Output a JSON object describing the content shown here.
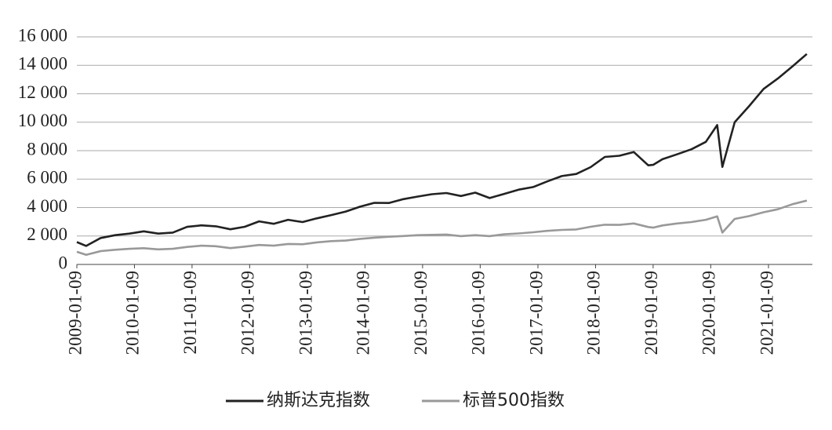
{
  "chart_data": {
    "type": "line",
    "x": [
      "2009-01-09",
      "2009-03-09",
      "2009-06-09",
      "2009-09-09",
      "2009-12-09",
      "2010-03-09",
      "2010-06-09",
      "2010-09-09",
      "2010-12-09",
      "2011-03-09",
      "2011-06-09",
      "2011-09-09",
      "2011-12-09",
      "2012-03-09",
      "2012-06-09",
      "2012-09-09",
      "2012-12-09",
      "2013-03-09",
      "2013-06-09",
      "2013-09-09",
      "2013-12-09",
      "2014-03-09",
      "2014-06-09",
      "2014-09-09",
      "2014-12-09",
      "2015-03-09",
      "2015-06-09",
      "2015-09-09",
      "2015-12-09",
      "2016-03-09",
      "2016-06-09",
      "2016-09-09",
      "2016-12-09",
      "2017-03-09",
      "2017-06-09",
      "2017-09-09",
      "2017-12-09",
      "2018-03-09",
      "2018-06-09",
      "2018-09-09",
      "2018-12-09",
      "2019-01-09",
      "2019-03-09",
      "2019-06-09",
      "2019-09-09",
      "2019-12-09",
      "2020-02-19",
      "2020-03-23",
      "2020-06-09",
      "2020-09-09",
      "2020-12-09",
      "2021-03-09",
      "2021-06-09",
      "2021-09-09"
    ],
    "series": [
      {
        "name": "纳斯达克指数",
        "color": "#222222",
        "values": [
          1570,
          1300,
          1860,
          2060,
          2170,
          2330,
          2170,
          2240,
          2640,
          2750,
          2680,
          2470,
          2650,
          3030,
          2860,
          3140,
          2980,
          3240,
          3470,
          3720,
          4060,
          4330,
          4320,
          4590,
          4770,
          4940,
          5020,
          4810,
          5050,
          4670,
          4960,
          5260,
          5440,
          5840,
          6210,
          6360,
          6840,
          7560,
          7640,
          7900,
          6970,
          7000,
          7400,
          7740,
          8100,
          8620,
          9800,
          6860,
          10000,
          11140,
          12340,
          13070,
          13920,
          14800
        ]
      },
      {
        "name": "标普500指数",
        "color": "#999999",
        "values": [
          890,
          680,
          940,
          1030,
          1100,
          1140,
          1060,
          1100,
          1230,
          1320,
          1280,
          1150,
          1250,
          1370,
          1320,
          1440,
          1420,
          1550,
          1640,
          1680,
          1800,
          1880,
          1950,
          2000,
          2060,
          2080,
          2100,
          1990,
          2060,
          1990,
          2120,
          2180,
          2260,
          2360,
          2430,
          2460,
          2650,
          2790,
          2780,
          2880,
          2630,
          2590,
          2740,
          2880,
          2980,
          3140,
          3380,
          2240,
          3200,
          3400,
          3670,
          3880,
          4230,
          4490
        ]
      }
    ],
    "xticks": [
      "2009-01-09",
      "2010-01-09",
      "2011-01-09",
      "2012-01-09",
      "2013-01-09",
      "2014-01-09",
      "2015-01-09",
      "2016-01-09",
      "2017-01-09",
      "2018-01-09",
      "2019-01-09",
      "2020-01-09",
      "2021-01-09"
    ],
    "ylim": [
      0,
      16000
    ],
    "yticks": [
      0,
      {
        "value": 2000,
        "label": "2 000"
      },
      {
        "value": 4000,
        "label": "4 000"
      },
      {
        "value": 6000,
        "label": "6 000"
      },
      {
        "value": 8000,
        "label": "8 000"
      },
      {
        "value": 10000,
        "label": "10 000"
      },
      {
        "value": 12000,
        "label": "12 000"
      },
      {
        "value": 14000,
        "label": "14 000"
      },
      {
        "value": 16000,
        "label": "16 000"
      }
    ],
    "grid": true
  }
}
